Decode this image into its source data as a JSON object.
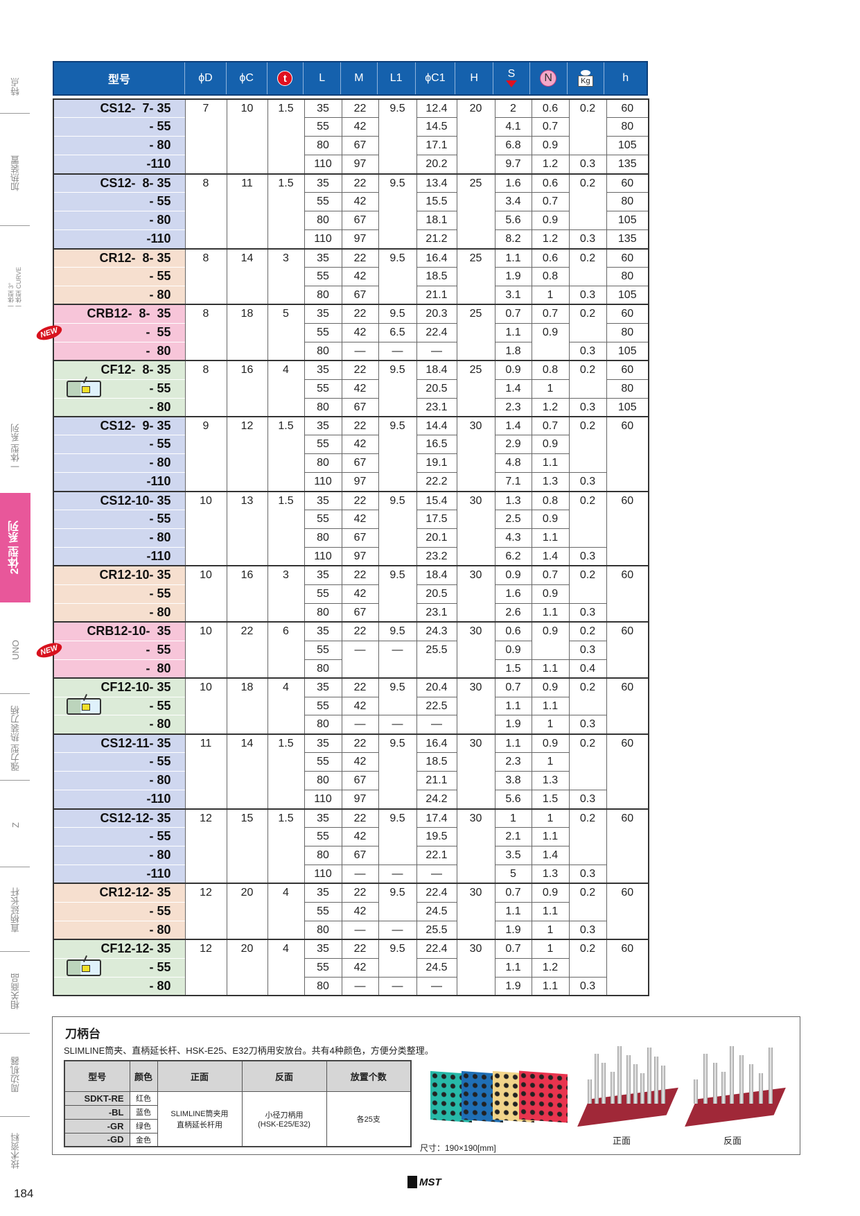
{
  "sidebar": {
    "items": [
      {
        "label": "特点"
      },
      {
        "label": "加热装置"
      },
      {
        "label": "一体型 3°\n一体型 CURVE"
      },
      {
        "label": "一体型 系列"
      },
      {
        "label": "2体型 系列",
        "active": true
      },
      {
        "label": "UNO"
      },
      {
        "label": "强力型 热装刀柄"
      },
      {
        "label": "Z"
      },
      {
        "label": "直柄延长杆"
      },
      {
        "label": "相关商品"
      },
      {
        "label": "周边机器"
      },
      {
        "label": "技术资料"
      }
    ]
  },
  "table": {
    "headers": [
      "型号",
      "ϕD",
      "ϕC",
      "t",
      "L",
      "M",
      "L1",
      "ϕC1",
      "H",
      "S",
      "N",
      "Kg",
      "h"
    ],
    "header_icons": {
      "t": "t-circle-icon",
      "S": "s-down-arrow-icon",
      "N": "n-circle-icon",
      "Kg": "weight-kg-icon"
    },
    "series_colors": {
      "CS": "#cfd7ef",
      "CR": "#f6dfcf",
      "CRB": "#f7c5d9",
      "CF": "#dcebd8"
    },
    "new_badge": "NEW",
    "groups": [
      {
        "series": "CS",
        "models": [
          "CS12-  7- 35",
          "- 55",
          "- 80",
          "-110"
        ],
        "cols": [
          [
            "7",
            null,
            null,
            null
          ],
          [
            "10",
            null,
            null,
            null
          ],
          [
            "1.5",
            null,
            null,
            null
          ],
          [
            "35",
            "55",
            "80",
            "110"
          ],
          [
            "22",
            "42",
            "67",
            "97"
          ],
          [
            "9.5",
            null,
            null,
            null
          ],
          [
            "12.4",
            "14.5",
            "17.1",
            "20.2"
          ],
          [
            "20",
            null,
            null,
            null
          ],
          [
            "2",
            "4.1",
            "6.8",
            "9.7"
          ],
          [
            "0.6",
            "0.7",
            "0.9",
            "1.2"
          ],
          [
            "0.2",
            null,
            null,
            "0.3"
          ],
          [
            "60",
            "80",
            "105",
            "135"
          ]
        ]
      },
      {
        "series": "CS",
        "models": [
          "CS12-  8- 35",
          "- 55",
          "- 80",
          "-110"
        ],
        "cols": [
          [
            "8",
            null,
            null,
            null
          ],
          [
            "11",
            null,
            null,
            null
          ],
          [
            "1.5",
            null,
            null,
            null
          ],
          [
            "35",
            "55",
            "80",
            "110"
          ],
          [
            "22",
            "42",
            "67",
            "97"
          ],
          [
            "9.5",
            null,
            null,
            null
          ],
          [
            "13.4",
            "15.5",
            "18.1",
            "21.2"
          ],
          [
            "25",
            null,
            null,
            null
          ],
          [
            "1.6",
            "3.4",
            "5.6",
            "8.2"
          ],
          [
            "0.6",
            "0.7",
            "0.9",
            "1.2"
          ],
          [
            "0.2",
            null,
            null,
            "0.3"
          ],
          [
            "60",
            "80",
            "105",
            "135"
          ]
        ]
      },
      {
        "series": "CR",
        "models": [
          "CR12-  8- 35",
          "- 55",
          "- 80"
        ],
        "cols": [
          [
            "8",
            null,
            null
          ],
          [
            "14",
            null,
            null
          ],
          [
            "3",
            null,
            null
          ],
          [
            "35",
            "55",
            "80"
          ],
          [
            "22",
            "42",
            "67"
          ],
          [
            "9.5",
            null,
            null
          ],
          [
            "16.4",
            "18.5",
            "21.1"
          ],
          [
            "25",
            null,
            null
          ],
          [
            "1.1",
            "1.9",
            "3.1"
          ],
          [
            "0.6",
            "0.8",
            "1"
          ],
          [
            "0.2",
            null,
            "0.3"
          ],
          [
            "60",
            "80",
            "105"
          ]
        ]
      },
      {
        "series": "CRB",
        "new": true,
        "models": [
          "CRB12-  8-  35",
          "-  55",
          "-  80"
        ],
        "cols": [
          [
            "8",
            null,
            null
          ],
          [
            "18",
            null,
            null
          ],
          [
            "5",
            null,
            null
          ],
          [
            "35",
            "55",
            "80"
          ],
          [
            "22",
            "42",
            "—"
          ],
          [
            "9.5",
            "6.5",
            "—"
          ],
          [
            "20.3",
            "22.4",
            "—"
          ],
          [
            "25",
            null,
            null
          ],
          [
            "0.7",
            "1.1",
            "1.8"
          ],
          [
            "0.7",
            "0.9",
            null
          ],
          [
            "0.2",
            null,
            "0.3"
          ],
          [
            "60",
            "80",
            "105"
          ]
        ]
      },
      {
        "series": "CF",
        "icon": true,
        "models": [
          "CF12-  8- 35",
          "- 55",
          "- 80"
        ],
        "cols": [
          [
            "8",
            null,
            null
          ],
          [
            "16",
            null,
            null
          ],
          [
            "4",
            null,
            null
          ],
          [
            "35",
            "55",
            "80"
          ],
          [
            "22",
            "42",
            "67"
          ],
          [
            "9.5",
            null,
            null
          ],
          [
            "18.4",
            "20.5",
            "23.1"
          ],
          [
            "25",
            null,
            null
          ],
          [
            "0.9",
            "1.4",
            "2.3"
          ],
          [
            "0.8",
            "1",
            "1.2"
          ],
          [
            "0.2",
            null,
            "0.3"
          ],
          [
            "60",
            "80",
            "105"
          ]
        ]
      },
      {
        "series": "CS",
        "models": [
          "CS12-  9- 35",
          "- 55",
          "- 80",
          "-110"
        ],
        "cols": [
          [
            "9",
            null,
            null,
            null
          ],
          [
            "12",
            null,
            null,
            null
          ],
          [
            "1.5",
            null,
            null,
            null
          ],
          [
            "35",
            "55",
            "80",
            "110"
          ],
          [
            "22",
            "42",
            "67",
            "97"
          ],
          [
            "9.5",
            null,
            null,
            null
          ],
          [
            "14.4",
            "16.5",
            "19.1",
            "22.2"
          ],
          [
            "30",
            null,
            null,
            null
          ],
          [
            "1.4",
            "2.9",
            "4.8",
            "7.1"
          ],
          [
            "0.7",
            "0.9",
            "1.1",
            "1.3"
          ],
          [
            "0.2",
            null,
            null,
            "0.3"
          ],
          [
            "60",
            null,
            null,
            null
          ]
        ]
      },
      {
        "series": "CS",
        "models": [
          "CS12-10- 35",
          "- 55",
          "- 80",
          "-110"
        ],
        "cols": [
          [
            "10",
            null,
            null,
            null
          ],
          [
            "13",
            null,
            null,
            null
          ],
          [
            "1.5",
            null,
            null,
            null
          ],
          [
            "35",
            "55",
            "80",
            "110"
          ],
          [
            "22",
            "42",
            "67",
            "97"
          ],
          [
            "9.5",
            null,
            null,
            null
          ],
          [
            "15.4",
            "17.5",
            "20.1",
            "23.2"
          ],
          [
            "30",
            null,
            null,
            null
          ],
          [
            "1.3",
            "2.5",
            "4.3",
            "6.2"
          ],
          [
            "0.8",
            "0.9",
            "1.1",
            "1.4"
          ],
          [
            "0.2",
            null,
            null,
            "0.3"
          ],
          [
            "60",
            null,
            null,
            null
          ]
        ]
      },
      {
        "series": "CR",
        "models": [
          "CR12-10- 35",
          "- 55",
          "- 80"
        ],
        "cols": [
          [
            "10",
            null,
            null
          ],
          [
            "16",
            null,
            null
          ],
          [
            "3",
            null,
            null
          ],
          [
            "35",
            "55",
            "80"
          ],
          [
            "22",
            "42",
            "67"
          ],
          [
            "9.5",
            null,
            null
          ],
          [
            "18.4",
            "20.5",
            "23.1"
          ],
          [
            "30",
            null,
            null
          ],
          [
            "0.9",
            "1.6",
            "2.6"
          ],
          [
            "0.7",
            "0.9",
            "1.1"
          ],
          [
            "0.2",
            null,
            "0.3"
          ],
          [
            "60",
            null,
            null
          ]
        ]
      },
      {
        "series": "CRB",
        "new": true,
        "models": [
          "CRB12-10-  35",
          "-  55",
          "-  80"
        ],
        "cols": [
          [
            "10",
            null,
            null
          ],
          [
            "22",
            null,
            null
          ],
          [
            "6",
            null,
            null
          ],
          [
            "35",
            "55",
            "80"
          ],
          [
            "22",
            "—",
            null
          ],
          [
            "9.5",
            "—",
            null
          ],
          [
            "24.3",
            "25.5",
            null
          ],
          [
            "30",
            null,
            null
          ],
          [
            "0.6",
            "0.9",
            "1.5"
          ],
          [
            "0.9",
            null,
            "1.1"
          ],
          [
            "0.2",
            "0.3",
            "0.4"
          ],
          [
            "60",
            null,
            null
          ]
        ]
      },
      {
        "series": "CF",
        "icon": true,
        "models": [
          "CF12-10- 35",
          "- 55",
          "- 80"
        ],
        "cols": [
          [
            "10",
            null,
            null
          ],
          [
            "18",
            null,
            null
          ],
          [
            "4",
            null,
            null
          ],
          [
            "35",
            "55",
            "80"
          ],
          [
            "22",
            "42",
            "—"
          ],
          [
            "9.5",
            null,
            "—"
          ],
          [
            "20.4",
            "22.5",
            "—"
          ],
          [
            "30",
            null,
            null
          ],
          [
            "0.7",
            "1.1",
            "1.9"
          ],
          [
            "0.9",
            "1.1",
            "1"
          ],
          [
            "0.2",
            null,
            "0.3"
          ],
          [
            "60",
            null,
            null
          ]
        ]
      },
      {
        "series": "CS",
        "models": [
          "CS12-11- 35",
          "- 55",
          "- 80",
          "-110"
        ],
        "cols": [
          [
            "11",
            null,
            null,
            null
          ],
          [
            "14",
            null,
            null,
            null
          ],
          [
            "1.5",
            null,
            null,
            null
          ],
          [
            "35",
            "55",
            "80",
            "110"
          ],
          [
            "22",
            "42",
            "67",
            "97"
          ],
          [
            "9.5",
            null,
            null,
            null
          ],
          [
            "16.4",
            "18.5",
            "21.1",
            "24.2"
          ],
          [
            "30",
            null,
            null,
            null
          ],
          [
            "1.1",
            "2.3",
            "3.8",
            "5.6"
          ],
          [
            "0.9",
            "1",
            "1.3",
            "1.5"
          ],
          [
            "0.2",
            null,
            null,
            "0.3"
          ],
          [
            "60",
            null,
            null,
            null
          ]
        ]
      },
      {
        "series": "CS",
        "models": [
          "CS12-12- 35",
          "- 55",
          "- 80",
          "-110"
        ],
        "cols": [
          [
            "12",
            null,
            null,
            null
          ],
          [
            "15",
            null,
            null,
            null
          ],
          [
            "1.5",
            null,
            null,
            null
          ],
          [
            "35",
            "55",
            "80",
            "110"
          ],
          [
            "22",
            "42",
            "67",
            "—"
          ],
          [
            "9.5",
            null,
            null,
            "—"
          ],
          [
            "17.4",
            "19.5",
            "22.1",
            "—"
          ],
          [
            "30",
            null,
            null,
            null
          ],
          [
            "1",
            "2.1",
            "3.5",
            "5"
          ],
          [
            "1",
            "1.1",
            "1.4",
            "1.3"
          ],
          [
            "0.2",
            null,
            null,
            "0.3"
          ],
          [
            "60",
            null,
            null,
            null
          ]
        ]
      },
      {
        "series": "CR",
        "models": [
          "CR12-12- 35",
          "- 55",
          "- 80"
        ],
        "cols": [
          [
            "12",
            null,
            null
          ],
          [
            "20",
            null,
            null
          ],
          [
            "4",
            null,
            null
          ],
          [
            "35",
            "55",
            "80"
          ],
          [
            "22",
            "42",
            "—"
          ],
          [
            "9.5",
            null,
            "—"
          ],
          [
            "22.4",
            "24.5",
            "25.5"
          ],
          [
            "30",
            null,
            null
          ],
          [
            "0.7",
            "1.1",
            "1.9"
          ],
          [
            "0.9",
            "1.1",
            "1"
          ],
          [
            "0.2",
            null,
            "0.3"
          ],
          [
            "60",
            null,
            null
          ]
        ]
      },
      {
        "series": "CF",
        "icon": true,
        "models": [
          "CF12-12- 35",
          "- 55",
          "- 80"
        ],
        "cols": [
          [
            "12",
            null,
            null
          ],
          [
            "20",
            null,
            null
          ],
          [
            "4",
            null,
            null
          ],
          [
            "35",
            "55",
            "80"
          ],
          [
            "22",
            "42",
            "—"
          ],
          [
            "9.5",
            null,
            "—"
          ],
          [
            "22.4",
            "24.5",
            "—"
          ],
          [
            "30",
            null,
            null
          ],
          [
            "0.7",
            "1.1",
            "1.9"
          ],
          [
            "1",
            "1.2",
            "1.1"
          ],
          [
            "0.2",
            null,
            "0.3"
          ],
          [
            "60",
            null,
            null
          ]
        ]
      }
    ]
  },
  "stand": {
    "title": "刀柄台",
    "description": "SLIMLINE筒夹、直柄延长杆、HSK-E25、E32刀柄用安放台。共有4种颜色，方便分类整理。",
    "headers": [
      "型号",
      "颜色",
      "正面",
      "反面",
      "放置个数"
    ],
    "rows": [
      {
        "model": "SDKT-RE",
        "color": "红色"
      },
      {
        "model": "-BL",
        "color": "蓝色"
      },
      {
        "model": "-GR",
        "color": "绿色"
      },
      {
        "model": "-GD",
        "color": "金色"
      }
    ],
    "front": "SLIMLINE筒夹用\n直柄延长杆用",
    "back": "小径刀柄用\n(HSK-E25/E32)",
    "count": "各25支",
    "size": "尺寸：190×190[mm]",
    "caption_front": "正面",
    "caption_back": "反面",
    "plate_colors": [
      "#27b9a8",
      "#1f6fb5",
      "#f1d48a",
      "#e8344e"
    ]
  },
  "footer": {
    "page": "184",
    "logo": "MST"
  }
}
